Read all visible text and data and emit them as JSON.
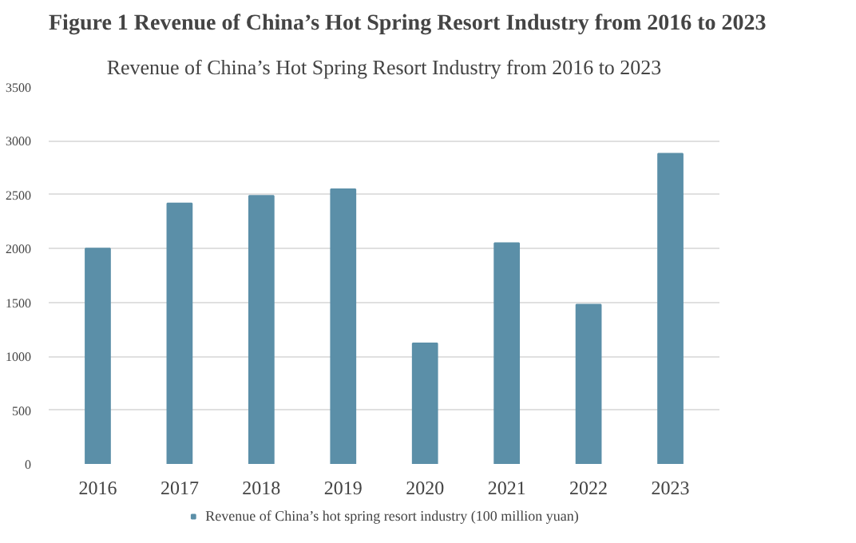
{
  "chart_data": {
    "type": "bar",
    "title": "Figure 1 Revenue of China’s Hot Spring Resort Industry from 2016 to 2023",
    "subtitle": "Revenue of China’s Hot Spring Resort Industry from 2016 to 2023",
    "categories": [
      "2016",
      "2017",
      "2018",
      "2019",
      "2020",
      "2021",
      "2022",
      "2023"
    ],
    "series": [
      {
        "name": "Revenue of China’s hot spring resort industry (100 million yuan)",
        "color": "#5b8fa8",
        "values": [
          2000,
          2420,
          2490,
          2550,
          1120,
          2050,
          1480,
          2880
        ]
      }
    ],
    "ylim": [
      0,
      3500
    ],
    "yticks": [
      0,
      500,
      1000,
      1500,
      2000,
      2500,
      3000,
      3500
    ],
    "grid": "y",
    "legend": "bottom"
  }
}
